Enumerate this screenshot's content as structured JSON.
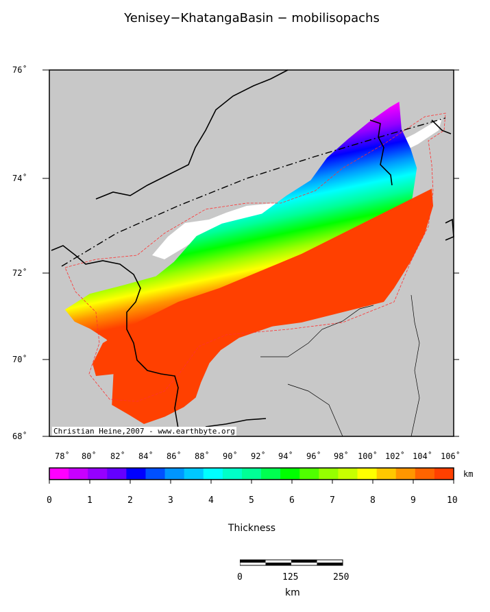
{
  "title": "Yenisey−KhatangaBasin − mobilisopachs",
  "map": {
    "land_color": "#c8c8c8",
    "lat_labels": [
      "76˚",
      "74˚",
      "72˚",
      "70˚",
      "68˚"
    ],
    "lon_labels": [
      "78˚",
      "80˚",
      "82˚",
      "84˚",
      "86˚",
      "88˚",
      "90˚",
      "92˚",
      "94˚",
      "96˚",
      "98˚",
      "100˚",
      "102˚",
      "104˚",
      "106˚"
    ],
    "credit": "Christian Heine,2007 - www.earthbyte.org"
  },
  "colorbar": {
    "label": "Thickness",
    "unit": "km",
    "ticks": [
      "0",
      "1",
      "2",
      "3",
      "4",
      "5",
      "6",
      "7",
      "8",
      "9",
      "10"
    ],
    "colors": [
      "#ff00ff",
      "#c800ff",
      "#9600ff",
      "#6400ff",
      "#0000ff",
      "#0050ff",
      "#0096ff",
      "#00c8ff",
      "#00ffff",
      "#00ffc8",
      "#00ff96",
      "#00ff50",
      "#00ff00",
      "#50ff00",
      "#96ff00",
      "#c8ff00",
      "#ffff00",
      "#ffc800",
      "#ff9600",
      "#ff6400",
      "#ff4000"
    ]
  },
  "scalebar": {
    "unit": "km",
    "ticks": [
      "0",
      "125",
      "250"
    ]
  }
}
